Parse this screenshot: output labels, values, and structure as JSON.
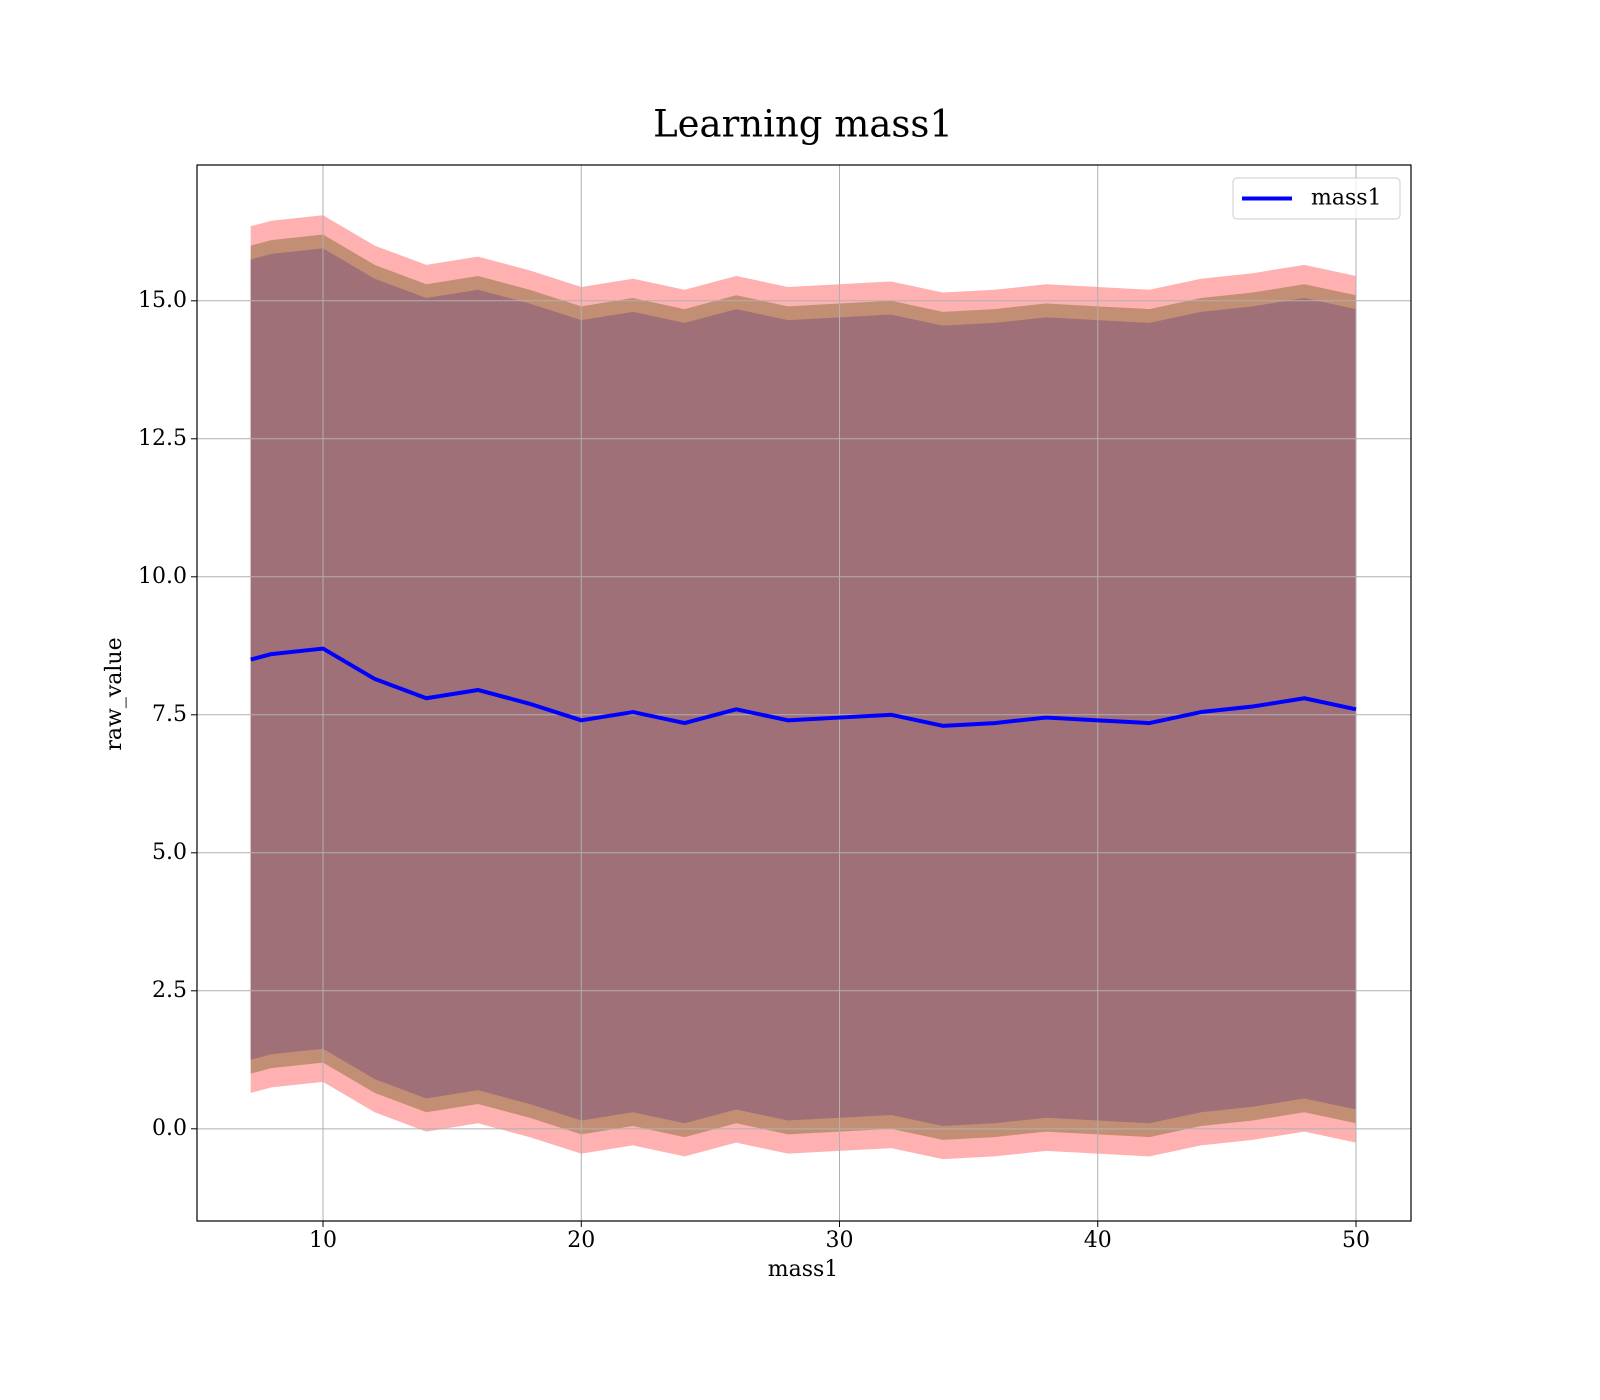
{
  "chart_data": {
    "type": "line",
    "title": "Learning mass1",
    "x_label": "mass1",
    "y_label": "raw_value",
    "x": [
      7.2,
      8,
      10,
      12,
      14,
      16,
      18,
      20,
      22,
      24,
      26,
      28,
      30,
      32,
      34,
      36,
      38,
      40,
      42,
      44,
      46,
      48,
      50
    ],
    "series": [
      {
        "name": "mass1",
        "color": "#0000ff",
        "values": [
          8.5,
          8.6,
          8.7,
          8.15,
          7.8,
          7.95,
          7.7,
          7.4,
          7.55,
          7.35,
          7.6,
          7.4,
          7.45,
          7.5,
          7.3,
          7.35,
          7.45,
          7.4,
          7.35,
          7.55,
          7.65,
          7.8,
          7.6
        ]
      }
    ],
    "bands": [
      {
        "color": "#ffb0b0",
        "upper": [
          16.35,
          16.45,
          16.55,
          16.0,
          15.65,
          15.8,
          15.55,
          15.25,
          15.4,
          15.2,
          15.45,
          15.25,
          15.3,
          15.35,
          15.15,
          15.2,
          15.3,
          15.25,
          15.2,
          15.4,
          15.5,
          15.65,
          15.45
        ],
        "lower": [
          0.65,
          0.75,
          0.85,
          0.3,
          -0.05,
          0.1,
          -0.15,
          -0.45,
          -0.3,
          -0.5,
          -0.25,
          -0.45,
          -0.4,
          -0.35,
          -0.55,
          -0.5,
          -0.4,
          -0.45,
          -0.5,
          -0.3,
          -0.2,
          -0.05,
          -0.25
        ]
      },
      {
        "color": "#c38f74",
        "upper": [
          16.0,
          16.1,
          16.2,
          15.65,
          15.3,
          15.45,
          15.2,
          14.9,
          15.05,
          14.85,
          15.1,
          14.9,
          14.95,
          15.0,
          14.8,
          14.85,
          14.95,
          14.9,
          14.85,
          15.05,
          15.15,
          15.3,
          15.1
        ],
        "lower": [
          1.0,
          1.1,
          1.2,
          0.65,
          0.3,
          0.45,
          0.2,
          -0.1,
          0.05,
          -0.15,
          0.1,
          -0.1,
          -0.05,
          0.0,
          -0.2,
          -0.15,
          -0.05,
          -0.1,
          -0.15,
          0.05,
          0.15,
          0.3,
          0.1
        ]
      },
      {
        "color": "#a07078",
        "upper": [
          15.75,
          15.85,
          15.95,
          15.4,
          15.05,
          15.2,
          14.95,
          14.65,
          14.8,
          14.6,
          14.85,
          14.65,
          14.7,
          14.75,
          14.55,
          14.6,
          14.7,
          14.65,
          14.6,
          14.8,
          14.9,
          15.05,
          14.85
        ],
        "lower": [
          1.25,
          1.35,
          1.45,
          0.9,
          0.55,
          0.7,
          0.45,
          0.15,
          0.3,
          0.1,
          0.35,
          0.15,
          0.2,
          0.25,
          0.05,
          0.1,
          0.2,
          0.15,
          0.1,
          0.3,
          0.4,
          0.55,
          0.35
        ]
      }
    ],
    "xlim": [
      5.12,
      52.13
    ],
    "ylim": [
      -1.67,
      17.46
    ],
    "xticks": [
      10,
      20,
      30,
      40,
      50
    ],
    "yticks": [
      {
        "value": 0,
        "label": "0.0"
      },
      2.5,
      {
        "value": 5,
        "label": "5.0"
      },
      7.5,
      {
        "value": 10,
        "label": "10.0"
      },
      12.5,
      {
        "value": 15,
        "label": "15.0"
      }
    ],
    "grid": true,
    "legend": "upper right"
  }
}
